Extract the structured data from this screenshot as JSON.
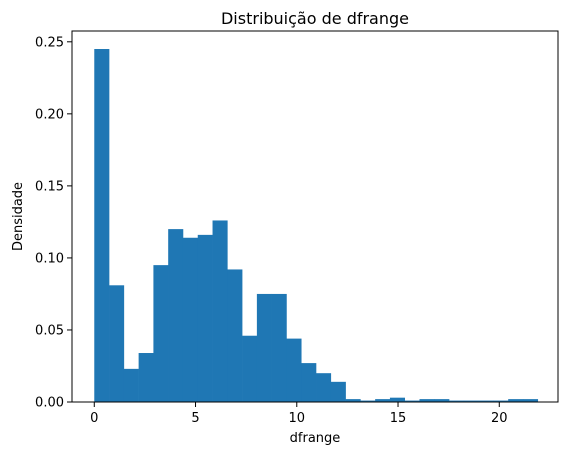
{
  "chart_data": {
    "type": "bar",
    "title": "Distribuição de dfrange",
    "xlabel": "dfrange",
    "ylabel": "Densidade",
    "xlim": [
      -1.1,
      22.9
    ],
    "ylim": [
      0,
      0.2575
    ],
    "bin_edges": [
      0.0,
      0.73,
      1.46,
      2.19,
      2.92,
      3.65,
      4.38,
      5.11,
      5.84,
      6.57,
      7.3,
      8.03,
      8.76,
      9.49,
      10.22,
      10.95,
      11.68,
      12.41,
      13.14,
      13.87,
      14.6,
      15.33,
      16.06,
      16.79,
      17.52,
      18.25,
      18.98,
      19.71,
      20.44,
      21.17,
      21.9
    ],
    "values": [
      0.245,
      0.081,
      0.023,
      0.034,
      0.095,
      0.12,
      0.114,
      0.116,
      0.126,
      0.092,
      0.046,
      0.075,
      0.075,
      0.044,
      0.027,
      0.02,
      0.014,
      0.002,
      0.001,
      0.002,
      0.003,
      0.001,
      0.002,
      0.002,
      0.001,
      0.001,
      0.001,
      0.001,
      0.002,
      0.002
    ],
    "x_ticks": [
      0,
      5,
      10,
      15,
      20
    ],
    "y_ticks": [
      0.0,
      0.05,
      0.1,
      0.15,
      0.2,
      0.25
    ],
    "x_tick_labels": [
      "0",
      "5",
      "10",
      "15",
      "20"
    ],
    "y_tick_labels": [
      "0.00",
      "0.05",
      "0.10",
      "0.15",
      "0.20",
      "0.25"
    ],
    "bar_color": "#1f77b4",
    "grid": false,
    "legend": "none"
  }
}
